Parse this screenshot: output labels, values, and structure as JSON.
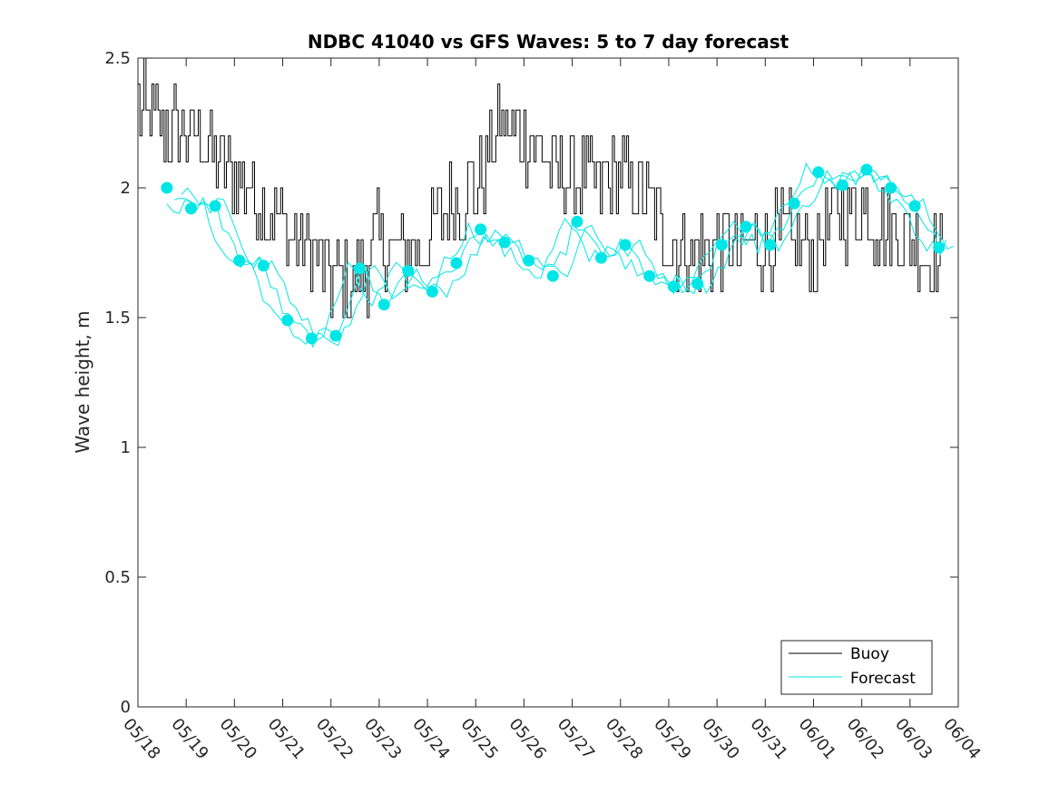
{
  "chart_data": {
    "type": "line",
    "title": "NDBC 41040 vs GFS Waves: 5 to 7 day forecast",
    "ylabel": "Wave height, m",
    "xlabel": "",
    "xlim": [
      "05/18",
      "06/04"
    ],
    "ylim": [
      0,
      2.5
    ],
    "y_ticks": [
      0,
      0.5,
      1,
      1.5,
      2,
      2.5
    ],
    "y_tick_labels": [
      "0",
      "0.5",
      "1",
      "1.5",
      "2",
      "2.5"
    ],
    "x_tick_labels": [
      "05/18",
      "05/19",
      "05/20",
      "05/21",
      "05/22",
      "05/23",
      "05/24",
      "05/25",
      "05/26",
      "05/27",
      "05/28",
      "05/29",
      "05/30",
      "05/31",
      "06/01",
      "06/02",
      "06/03",
      "06/04"
    ],
    "grid": false,
    "legend_position": "bottom-right",
    "series": [
      {
        "name": "Buoy",
        "color": "#000000",
        "style": "step-line",
        "x_days": [
          0.0,
          0.5,
          1.0,
          1.5,
          2.0,
          2.5,
          3.0,
          3.5,
          4.0,
          4.5,
          5.0,
          5.5,
          6.0,
          6.5,
          7.0,
          7.5,
          8.0,
          8.5,
          9.0,
          9.5,
          10.0,
          10.5,
          11.0,
          11.5,
          12.0,
          12.5,
          13.0,
          13.5,
          14.0,
          14.5,
          15.0,
          15.5,
          16.0,
          16.5,
          16.7
        ],
        "values": [
          2.3,
          2.25,
          2.2,
          2.15,
          2.05,
          1.95,
          1.85,
          1.75,
          1.65,
          1.62,
          1.8,
          1.75,
          1.8,
          1.95,
          2.0,
          2.25,
          2.2,
          2.1,
          2.05,
          2.0,
          2.05,
          1.95,
          1.8,
          1.75,
          1.78,
          1.75,
          1.8,
          1.8,
          1.75,
          1.9,
          1.92,
          1.85,
          1.8,
          1.72,
          1.7
        ]
      },
      {
        "name": "Forecast",
        "color": "#00e6e6",
        "style": "line+markers",
        "x_days": [
          0.6,
          1.1,
          1.6,
          2.1,
          2.6,
          3.1,
          3.6,
          4.1,
          4.6,
          5.1,
          5.6,
          6.1,
          6.6,
          7.1,
          7.6,
          8.1,
          8.6,
          9.1,
          9.6,
          10.1,
          10.6,
          11.1,
          11.6,
          12.1,
          12.6,
          13.1,
          13.6,
          14.1,
          14.6,
          15.1,
          15.6,
          16.1,
          16.6
        ],
        "values": [
          2.0,
          1.92,
          1.93,
          1.72,
          1.7,
          1.49,
          1.42,
          1.43,
          1.69,
          1.55,
          1.68,
          1.6,
          1.71,
          1.84,
          1.79,
          1.72,
          1.66,
          1.87,
          1.73,
          1.78,
          1.66,
          1.62,
          1.63,
          1.78,
          1.85,
          1.78,
          1.94,
          2.06,
          2.01,
          2.07,
          2.0,
          1.93,
          1.77
        ]
      }
    ]
  }
}
